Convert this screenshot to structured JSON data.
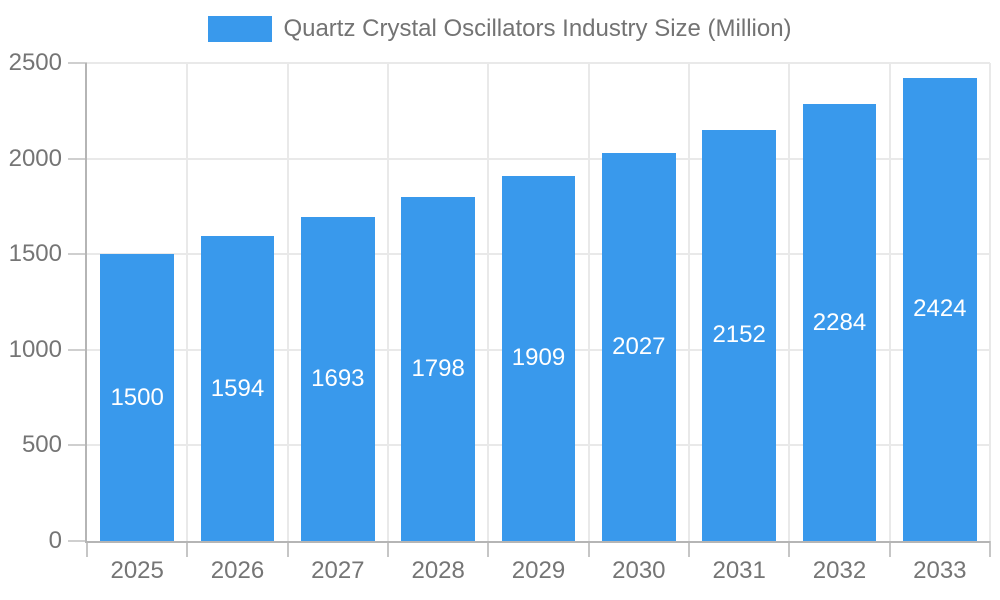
{
  "chart_data": {
    "type": "bar",
    "title": "Quartz Crystal Oscillators Industry Size (Million)",
    "legend": {
      "position": "top",
      "entries": [
        "Quartz Crystal Oscillators Industry Size (Million)"
      ]
    },
    "categories": [
      "2025",
      "2026",
      "2027",
      "2028",
      "2029",
      "2030",
      "2031",
      "2032",
      "2033"
    ],
    "values": [
      1500,
      1594,
      1693,
      1798,
      1909,
      2027,
      2152,
      2284,
      2424
    ],
    "series": [
      {
        "name": "Quartz Crystal Oscillators Industry Size (Million)",
        "values": [
          1500,
          1594,
          1693,
          1798,
          1909,
          2027,
          2152,
          2284,
          2424
        ]
      }
    ],
    "xlabel": "",
    "ylabel": "",
    "ylim": [
      0,
      2500
    ],
    "yticks": [
      0,
      500,
      1000,
      1500,
      2000,
      2500
    ],
    "grid": true,
    "bar_labels_inside": true,
    "colors": {
      "bar": "#3999EC",
      "bar_label": "#ffffff",
      "axis_text": "#757575",
      "legend_text": "#737373",
      "grid": "#e9e9e9",
      "axis_line": "#b5b5b5"
    }
  }
}
